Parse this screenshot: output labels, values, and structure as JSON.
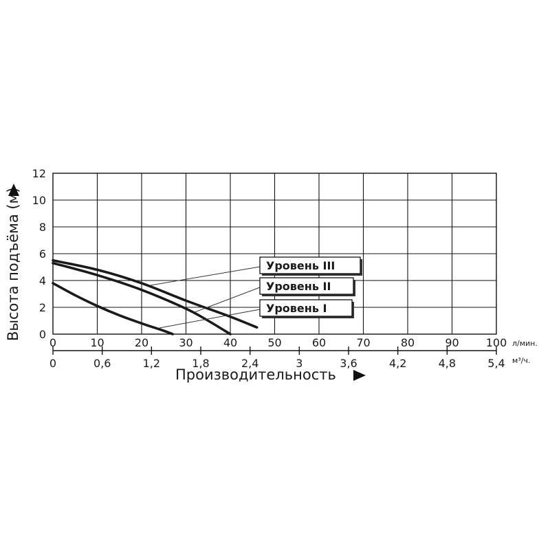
{
  "chart_data": {
    "type": "line",
    "ylabel": "Высота подъёма (м)",
    "xlabel": "Производительность",
    "ylim": [
      0,
      12
    ],
    "yticks": [
      "0",
      "2",
      "4",
      "6",
      "8",
      "10",
      "12"
    ],
    "x_primary": {
      "unit": "л/мин.",
      "range": [
        0,
        100
      ],
      "ticks": [
        "0",
        "10",
        "20",
        "30",
        "40",
        "50",
        "60",
        "70",
        "80",
        "90",
        "100"
      ]
    },
    "x_secondary": {
      "unit": "м³/ч.",
      "ticks": [
        "0",
        "0,6",
        "1,2",
        "1,8",
        "2,4",
        "3",
        "3,6",
        "4,2",
        "4,8",
        "5,4"
      ]
    },
    "grid": true,
    "series": [
      {
        "name": "Уровень I",
        "x": [
          0,
          5,
          10,
          15,
          20,
          25,
          27
        ],
        "y": [
          3.8,
          2.9,
          2.1,
          1.4,
          0.8,
          0.25,
          0
        ]
      },
      {
        "name": "Уровень II",
        "x": [
          0,
          10,
          20,
          30,
          35,
          40
        ],
        "y": [
          5.3,
          4.4,
          3.3,
          1.9,
          1.0,
          0
        ]
      },
      {
        "name": "Уровень III",
        "x": [
          0,
          10,
          20,
          30,
          40,
          46
        ],
        "y": [
          5.5,
          4.8,
          3.8,
          2.5,
          1.3,
          0.5
        ]
      }
    ]
  }
}
